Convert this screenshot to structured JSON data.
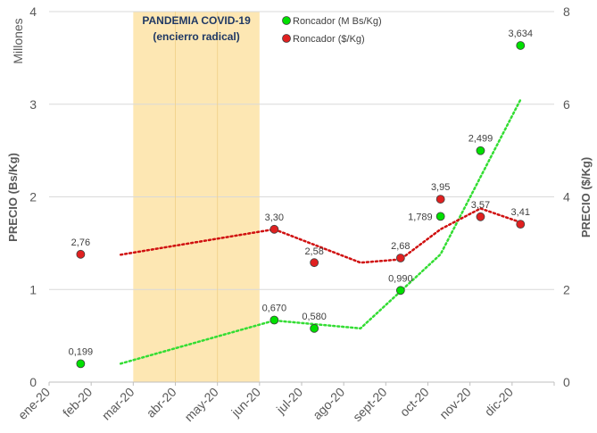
{
  "chart_data": {
    "type": "scatter",
    "months": [
      "ene-20",
      "feb-20",
      "mar-20",
      "abr-20",
      "may-20",
      "jun-20",
      "jul-20",
      "ago-20",
      "sept-20",
      "oct-20",
      "nov-20",
      "dic-20"
    ],
    "y_left": {
      "label": "PRECIO (Bs/Kg)",
      "multiplier_label": "Millones",
      "range": [
        0,
        4
      ],
      "ticks": [
        0,
        1,
        2,
        3,
        4
      ]
    },
    "y_right": {
      "label": "PRECIO ($/Kg)",
      "range": [
        0,
        8
      ],
      "ticks": [
        0,
        2,
        4,
        6,
        8
      ]
    },
    "grid": "horizontal",
    "legend_position": "top-center",
    "annotation": {
      "line1": "PANDEMIA COVID-19",
      "line2": "(encierro radical)",
      "span": [
        "mar-20",
        "jun-20"
      ],
      "color": "#fde7b3"
    },
    "series": [
      {
        "name": "Roncador (M Bs/Kg)",
        "axis": "left",
        "color": "#00e000",
        "trend_color": "#33dd33",
        "points": [
          {
            "x": 0.75,
            "y": 0.199,
            "label": "0,199"
          },
          {
            "x": 5.35,
            "y": 0.67,
            "label": "0,670"
          },
          {
            "x": 6.3,
            "y": 0.58,
            "label": "0,580"
          },
          {
            "x": 8.35,
            "y": 0.99,
            "label": "0,990"
          },
          {
            "x": 9.3,
            "y": 1.789,
            "label": "1,789"
          },
          {
            "x": 10.25,
            "y": 2.499,
            "label": "2,499"
          },
          {
            "x": 11.2,
            "y": 3.634,
            "label": "3,634"
          }
        ],
        "trend": [
          {
            "x": 1.7,
            "y": 0.2
          },
          {
            "x": 5.35,
            "y": 0.665
          },
          {
            "x": 7.4,
            "y": 0.58
          },
          {
            "x": 9.3,
            "y": 1.38
          },
          {
            "x": 11.2,
            "y": 3.05
          }
        ]
      },
      {
        "name": "Roncador ($/Kg)",
        "axis": "right",
        "color": "#e02020",
        "trend_color": "#d01010",
        "points": [
          {
            "x": 0.75,
            "y": 2.76,
            "label": "2,76"
          },
          {
            "x": 5.35,
            "y": 3.3,
            "label": "3,30"
          },
          {
            "x": 6.3,
            "y": 2.58,
            "label": "2,58"
          },
          {
            "x": 8.35,
            "y": 2.68,
            "label": "2,68"
          },
          {
            "x": 9.3,
            "y": 3.95,
            "label": "3,95"
          },
          {
            "x": 10.25,
            "y": 3.57,
            "label": "3,57"
          },
          {
            "x": 11.2,
            "y": 3.41,
            "label": "3,41"
          }
        ],
        "trend": [
          {
            "x": 1.7,
            "y": 2.75
          },
          {
            "x": 5.35,
            "y": 3.3
          },
          {
            "x": 7.4,
            "y": 2.58
          },
          {
            "x": 8.35,
            "y": 2.65
          },
          {
            "x": 9.3,
            "y": 3.3
          },
          {
            "x": 10.25,
            "y": 3.75
          },
          {
            "x": 11.2,
            "y": 3.45
          }
        ]
      }
    ]
  }
}
